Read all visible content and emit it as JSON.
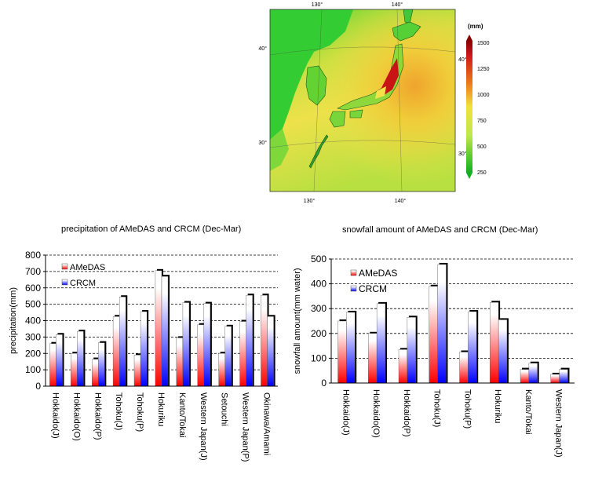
{
  "map": {
    "lon_labels_top": [
      "130°",
      "140°"
    ],
    "lon_labels_bottom": [
      "130°",
      "140°"
    ],
    "lat_labels_left": [
      "40°",
      "30°"
    ],
    "lat_labels_right": [
      "40°",
      "30°"
    ],
    "colorbar_unit": "(mm)",
    "colorbar_ticks": [
      "1500",
      "1250",
      "1000",
      "750",
      "500",
      "250"
    ],
    "colors": {
      "low": "#22c02a",
      "mid": "#f2ee3a",
      "high": "#c81414",
      "sea": "#e6d846"
    }
  },
  "chart_data": [
    {
      "type": "bar",
      "title": "precipitation of AMeDAS and CRCM (Dec-Mar)",
      "xlabel": "",
      "ylabel": "precipitation(mm)",
      "ylim": [
        0,
        800
      ],
      "yticks": [
        "0",
        "100",
        "200",
        "300",
        "400",
        "500",
        "600",
        "700",
        "800"
      ],
      "categories": [
        "Hokkaido(J)",
        "Hokkaido(O)",
        "Hokkaido(P)",
        "Tohoku(J)",
        "Tohoku(P)",
        "Hokuriku",
        "Kanto/Tokai",
        "Western Japan(J)",
        "Setouchi",
        "Western Japan(P)",
        "Okinawa/Amami"
      ],
      "series": [
        {
          "name": "AMeDAS",
          "values": [
            260,
            200,
            165,
            425,
            190,
            705,
            295,
            375,
            200,
            395,
            555
          ]
        },
        {
          "name": "CRCM",
          "values": [
            315,
            335,
            265,
            545,
            455,
            670,
            510,
            505,
            365,
            555,
            425
          ]
        }
      ],
      "grid": "dashed horizontal",
      "legend": "top-left"
    },
    {
      "type": "bar",
      "title": "snowfall amount of AMeDAS and CRCM (Dec-Mar)",
      "xlabel": "",
      "ylabel": "snowfall amount(mm water)",
      "ylim": [
        0,
        500
      ],
      "yticks": [
        "0",
        "100",
        "200",
        "300",
        "400",
        "500"
      ],
      "categories": [
        "Hokkaido(J)",
        "Hokkaido(O)",
        "Hokkaido(P)",
        "Tohoku(J)",
        "Tohoku(P)",
        "Hokuriku",
        "Kanto/Tokai",
        "Western Japan(J)"
      ],
      "series": [
        {
          "name": "AMeDAS",
          "values": [
            250,
            200,
            135,
            390,
            125,
            325,
            55,
            35
          ]
        },
        {
          "name": "CRCM",
          "values": [
            285,
            320,
            265,
            478,
            288,
            255,
            80,
            55
          ]
        }
      ],
      "grid": "dashed horizontal",
      "legend": "top-left"
    }
  ]
}
